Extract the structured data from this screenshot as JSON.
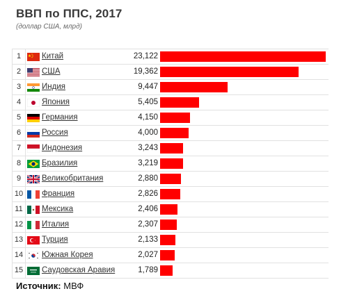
{
  "title": "ВВП по ППС, 2017",
  "subtitle": "(доллар США, млрд)",
  "source_label": "Источник:",
  "source_value": "МВФ",
  "chart_data": {
    "type": "bar",
    "orientation": "horizontal",
    "title": "ВВП по ППС, 2017",
    "subtitle": "(доллар США, млрд)",
    "xlim": [
      0,
      23122
    ],
    "bar_color": "#ff0000",
    "grid": false,
    "categories": [
      "Китай",
      "США",
      "Индия",
      "Япония",
      "Германия",
      "Россия",
      "Индонезия",
      "Бразилия",
      "Великобритания",
      "Франция",
      "Мексика",
      "Италия",
      "Турция",
      "Южная Корея",
      "Саудовская Аравия"
    ],
    "values": [
      23122,
      19362,
      9447,
      5405,
      4150,
      4000,
      3243,
      3219,
      2880,
      2826,
      2406,
      2307,
      2133,
      2027,
      1789
    ],
    "value_labels": [
      "23,122",
      "19,362",
      "9,447",
      "5,405",
      "4,150",
      "4,000",
      "3,243",
      "3,219",
      "2,880",
      "2,826",
      "2,406",
      "2,307",
      "2,133",
      "2,027",
      "1,789"
    ],
    "ranks": [
      "1",
      "2",
      "3",
      "4",
      "5",
      "6",
      "7",
      "8",
      "9",
      "10",
      "11",
      "12",
      "13",
      "14",
      "15"
    ],
    "flag_icons": [
      "china-flag-icon",
      "usa-flag-icon",
      "india-flag-icon",
      "japan-flag-icon",
      "germany-flag-icon",
      "russia-flag-icon",
      "indonesia-flag-icon",
      "brazil-flag-icon",
      "uk-flag-icon",
      "france-flag-icon",
      "mexico-flag-icon",
      "italy-flag-icon",
      "turkey-flag-icon",
      "south-korea-flag-icon",
      "saudi-arabia-flag-icon"
    ]
  }
}
